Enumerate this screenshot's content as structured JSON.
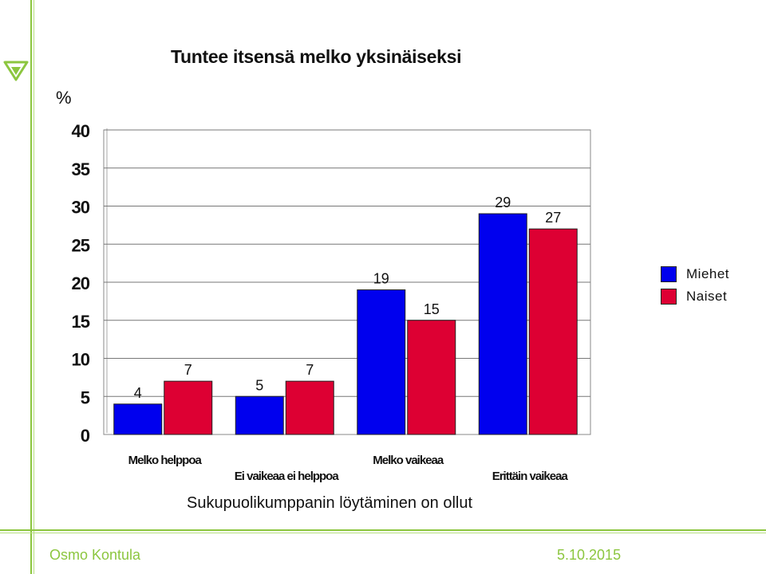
{
  "footer": {
    "author": "Osmo Kontula",
    "date": "5.10.2015"
  },
  "chart_data": {
    "type": "bar",
    "title": "Tuntee itsensä melko yksinäiseksi",
    "ylabel": "%",
    "xlabel": "Sukupuolikumppanin löytäminen on ollut",
    "categories": [
      "Melko helppoa",
      "Ei vaikeaa ei helppoa",
      "Melko vaikeaa",
      "Erittäin vaikeaa"
    ],
    "series": [
      {
        "name": "Miehet",
        "color": "#0000ee",
        "values": [
          4,
          5,
          19,
          29
        ]
      },
      {
        "name": "Naiset",
        "color": "#dd0033",
        "values": [
          7,
          7,
          15,
          27
        ]
      }
    ],
    "ylim": [
      0,
      40
    ],
    "yticks": [
      "0",
      "5",
      "10",
      "15",
      "20",
      "25",
      "30",
      "35",
      "40"
    ],
    "grid": true,
    "legend_position": "right"
  }
}
